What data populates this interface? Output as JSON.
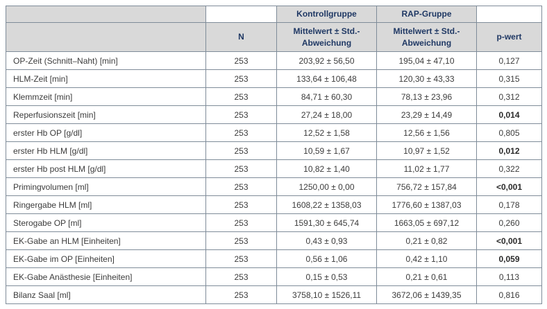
{
  "colors": {
    "header_bg": "#d9d9d9",
    "header_text": "#1f3864",
    "border": "#7f8c99",
    "body_text": "#3b3b3b"
  },
  "table": {
    "group_headers": [
      "Kontrollgruppe",
      "RAP-Gruppe"
    ],
    "headers": {
      "n": "N",
      "mittelwert": "Mittelwert ± Std.-Abweichung",
      "pwert": "p-wert"
    },
    "rows": [
      {
        "label": "OP-Zeit (Schnitt–Naht) [min]",
        "n": "253",
        "kontroll": "203,92 ± 56,50",
        "rap": "195,04 ± 47,10",
        "p": "0,127",
        "p_bold": false
      },
      {
        "label": "HLM-Zeit [min]",
        "n": "253",
        "kontroll": "133,64 ± 106,48",
        "rap": "120,30 ± 43,33",
        "p": "0,315",
        "p_bold": false
      },
      {
        "label": "Klemmzeit [min]",
        "n": "253",
        "kontroll": "84,71 ± 60,30",
        "rap": "78,13 ± 23,96",
        "p": "0,312",
        "p_bold": false
      },
      {
        "label": "Reperfusionszeit [min]",
        "n": "253",
        "kontroll": "27,24 ± 18,00",
        "rap": "23,29 ± 14,49",
        "p": "0,014",
        "p_bold": true
      },
      {
        "label": "erster Hb OP [g/dl]",
        "n": "253",
        "kontroll": "12,52 ± 1,58",
        "rap": "12,56 ± 1,56",
        "p": "0,805",
        "p_bold": false
      },
      {
        "label": "erster Hb HLM [g/dl]",
        "n": "253",
        "kontroll": "10,59 ± 1,67",
        "rap": "10,97 ± 1,52",
        "p": "0,012",
        "p_bold": true
      },
      {
        "label": "erster Hb post HLM [g/dl]",
        "n": "253",
        "kontroll": "10,82 ± 1,40",
        "rap": "11,02 ± 1,77",
        "p": "0,322",
        "p_bold": false
      },
      {
        "label": "Primingvolumen [ml]",
        "n": "253",
        "kontroll": "1250,00 ± 0,00",
        "rap": "756,72 ± 157,84",
        "p": "<0,001",
        "p_bold": true
      },
      {
        "label": "Ringergabe HLM [ml]",
        "n": "253",
        "kontroll": "1608,22 ± 1358,03",
        "rap": "1776,60 ± 1387,03",
        "p": "0,178",
        "p_bold": false
      },
      {
        "label": "Sterogabe OP [ml]",
        "n": "253",
        "kontroll": "1591,30 ± 645,74",
        "rap": "1663,05 ± 697,12",
        "p": "0,260",
        "p_bold": false
      },
      {
        "label": "EK-Gabe an HLM [Einheiten]",
        "n": "253",
        "kontroll": "0,43 ± 0,93",
        "rap": "0,21 ± 0,82",
        "p": "<0,001",
        "p_bold": true
      },
      {
        "label": "EK-Gabe im OP [Einheiten]",
        "n": "253",
        "kontroll": "0,56 ± 1,06",
        "rap": "0,42 ± 1,10",
        "p": "0,059",
        "p_bold": true
      },
      {
        "label": "EK-Gabe Anästhesie [Einheiten]",
        "n": "253",
        "kontroll": "0,15 ± 0,53",
        "rap": "0,21 ± 0,61",
        "p": "0,113",
        "p_bold": false
      },
      {
        "label": "Bilanz Saal [ml]",
        "n": "253",
        "kontroll": "3758,10 ± 1526,11",
        "rap": "3672,06 ± 1439,35",
        "p": "0,816",
        "p_bold": false
      }
    ]
  }
}
